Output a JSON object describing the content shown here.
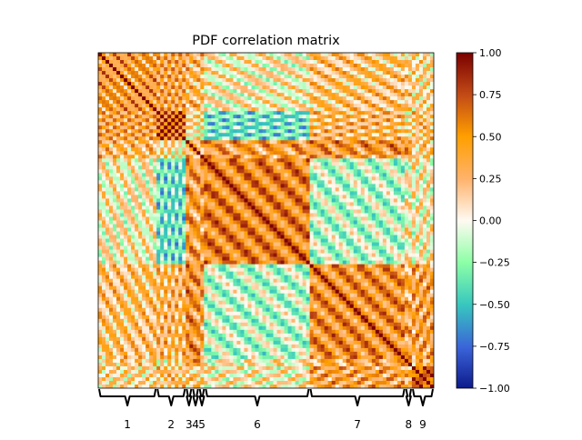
{
  "chart_data": {
    "type": "heatmap",
    "title": "PDF correlation matrix",
    "xlabel": "",
    "ylabel": "",
    "colorbar": {
      "min": -1.0,
      "max": 1.0,
      "ticks": [
        1.0,
        0.75,
        0.5,
        0.25,
        0.0,
        -0.25,
        -0.5,
        -0.75,
        -1.0
      ],
      "tick_labels": [
        "1.00",
        "0.75",
        "0.50",
        "0.25",
        "0.00",
        "−0.25",
        "−0.50",
        "−0.75",
        "−1.00"
      ],
      "stops": [
        {
          "v": 0.0,
          "color": "#0d1a8c"
        },
        {
          "v": 0.12,
          "color": "#3a63d8"
        },
        {
          "v": 0.25,
          "color": "#38c8be"
        },
        {
          "v": 0.375,
          "color": "#8dffa6"
        },
        {
          "v": 0.5,
          "color": "#fffaf2"
        },
        {
          "v": 0.625,
          "color": "#ffb26a"
        },
        {
          "v": 0.75,
          "color": "#ff9f00"
        },
        {
          "v": 0.875,
          "color": "#c24a16"
        },
        {
          "v": 1.0,
          "color": "#7a0000"
        }
      ]
    },
    "blocks": [
      {
        "label": "1",
        "start": 0.0,
        "end": 0.174
      },
      {
        "label": "2",
        "start": 0.174,
        "end": 0.261
      },
      {
        "label": "3",
        "start": 0.261,
        "end": 0.28
      },
      {
        "label": "4",
        "start": 0.28,
        "end": 0.3
      },
      {
        "label": "5",
        "start": 0.3,
        "end": 0.318
      },
      {
        "label": "6",
        "start": 0.318,
        "end": 0.63
      },
      {
        "label": "7",
        "start": 0.63,
        "end": 0.915
      },
      {
        "label": "8",
        "start": 0.915,
        "end": 0.935
      },
      {
        "label": "9",
        "start": 0.935,
        "end": 1.0
      }
    ],
    "block_correlation": [
      [
        0.45,
        0.4,
        0.3,
        0.3,
        0.3,
        0.05,
        0.25,
        0.2,
        0.15
      ],
      [
        0.4,
        0.7,
        0.1,
        0.1,
        0.1,
        -0.35,
        0.3,
        0.1,
        0.25
      ],
      [
        0.3,
        0.1,
        0.35,
        0.4,
        0.4,
        0.45,
        0.5,
        0.45,
        0.2
      ],
      [
        0.3,
        0.1,
        0.4,
        0.35,
        0.4,
        0.4,
        0.45,
        0.4,
        0.2
      ],
      [
        0.3,
        0.1,
        0.4,
        0.4,
        0.35,
        0.4,
        0.4,
        0.35,
        0.2
      ],
      [
        0.05,
        -0.35,
        0.45,
        0.4,
        0.4,
        0.55,
        -0.15,
        0.05,
        0.05
      ],
      [
        0.25,
        0.3,
        0.5,
        0.45,
        0.4,
        -0.15,
        0.5,
        0.35,
        0.4
      ],
      [
        0.2,
        0.1,
        0.45,
        0.4,
        0.35,
        0.05,
        0.35,
        0.45,
        0.3
      ],
      [
        0.15,
        0.25,
        0.2,
        0.2,
        0.2,
        0.05,
        0.4,
        0.3,
        0.75
      ]
    ]
  }
}
